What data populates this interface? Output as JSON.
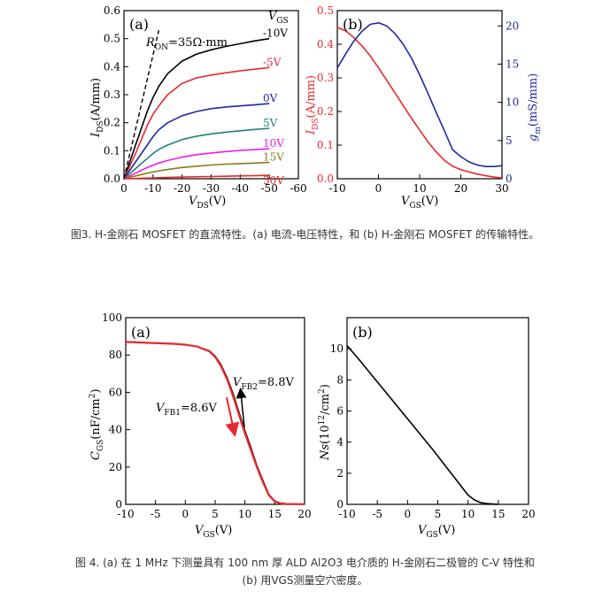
{
  "captions": {
    "fig3": "图3. H-金刚石 MOSFET 的直流特性。(a) 电流-电压特性，和 (b) H-金刚石 MOSFET 的传输特性。",
    "fig4_line1": "图 4. (a) 在 1 MHz 下测量具有 100 nm 厚 ALD Al2O3 电介质的 H-金刚石二极管的 C-V 特性和",
    "fig4_line2": "(b) 用VGS测量空穴密度。"
  },
  "chart_data": [
    {
      "id": "fig3a",
      "panel_label": "(a)",
      "type": "line",
      "xlabel": "VDS(V)",
      "ylabel": "IDS(A/mm)",
      "xlim": [
        0,
        -60
      ],
      "ylim": [
        0,
        0.6
      ],
      "x_ticks": [
        0,
        -10,
        -20,
        -30,
        -40,
        -50,
        -60
      ],
      "y_ticks": [
        0.0,
        0.1,
        0.2,
        0.3,
        0.4,
        0.5,
        0.6
      ],
      "legend_title": "VGS",
      "annotation": {
        "text": "RON=35Ω·mm",
        "line_x": [
          0,
          -12
        ],
        "line_y": [
          0,
          0.53
        ]
      },
      "series": [
        {
          "name": "-10V",
          "color": "#000000",
          "x": [
            0,
            -2,
            -4,
            -6,
            -8,
            -10,
            -12,
            -15,
            -20,
            -25,
            -30,
            -35,
            -40,
            -45,
            -50
          ],
          "values": [
            0,
            0.06,
            0.12,
            0.18,
            0.24,
            0.29,
            0.33,
            0.375,
            0.42,
            0.445,
            0.46,
            0.472,
            0.482,
            0.492,
            0.5
          ]
        },
        {
          "name": "-5V",
          "color": "#e8282d",
          "x": [
            0,
            -2,
            -4,
            -6,
            -8,
            -10,
            -12,
            -15,
            -20,
            -25,
            -30,
            -35,
            -40,
            -45,
            -50
          ],
          "values": [
            0,
            0.045,
            0.09,
            0.14,
            0.19,
            0.23,
            0.26,
            0.3,
            0.34,
            0.36,
            0.37,
            0.378,
            0.385,
            0.391,
            0.397
          ]
        },
        {
          "name": "0V",
          "color": "#1d2aa3",
          "x": [
            0,
            -2,
            -4,
            -6,
            -8,
            -10,
            -12,
            -15,
            -20,
            -25,
            -30,
            -35,
            -40,
            -45,
            -50
          ],
          "values": [
            0,
            0.03,
            0.06,
            0.09,
            0.12,
            0.15,
            0.175,
            0.2,
            0.225,
            0.24,
            0.25,
            0.256,
            0.26,
            0.264,
            0.268
          ]
        },
        {
          "name": "5V",
          "color": "#1f7f7f",
          "x": [
            0,
            -2,
            -4,
            -6,
            -8,
            -10,
            -12,
            -15,
            -20,
            -25,
            -30,
            -35,
            -40,
            -45,
            -50
          ],
          "values": [
            0,
            0.018,
            0.036,
            0.055,
            0.072,
            0.09,
            0.105,
            0.12,
            0.14,
            0.152,
            0.16,
            0.166,
            0.171,
            0.176,
            0.18
          ]
        },
        {
          "name": "10V",
          "color": "#f218e6",
          "x": [
            0,
            -2,
            -4,
            -6,
            -8,
            -10,
            -12,
            -15,
            -20,
            -25,
            -30,
            -35,
            -40,
            -45,
            -50
          ],
          "values": [
            0,
            0.01,
            0.02,
            0.03,
            0.04,
            0.048,
            0.056,
            0.065,
            0.077,
            0.086,
            0.092,
            0.097,
            0.101,
            0.104,
            0.107
          ]
        },
        {
          "name": "15V",
          "color": "#8a7a1a",
          "x": [
            0,
            -2,
            -4,
            -6,
            -8,
            -10,
            -12,
            -15,
            -20,
            -25,
            -30,
            -35,
            -40,
            -45,
            -50
          ],
          "values": [
            0,
            0.005,
            0.01,
            0.015,
            0.02,
            0.024,
            0.028,
            0.033,
            0.04,
            0.045,
            0.049,
            0.052,
            0.054,
            0.056,
            0.058
          ]
        },
        {
          "name": "30V",
          "color": "#e8282d",
          "x": [
            0,
            -10,
            -20,
            -30,
            -40,
            -50
          ],
          "values": [
            0,
            0.003,
            0.006,
            0.008,
            0.01,
            0.012
          ]
        }
      ]
    },
    {
      "id": "fig3b",
      "panel_label": "(b)",
      "type": "line",
      "xlabel": "VGS(V)",
      "ylabel": "IDS(A/mm)",
      "y2label": "gm(mS/mm)",
      "xlim": [
        -10,
        30
      ],
      "ylim": [
        0,
        0.5
      ],
      "y2lim": [
        0,
        22
      ],
      "x_ticks": [
        -10,
        0,
        10,
        20,
        30
      ],
      "y_ticks": [
        0.0,
        0.1,
        0.2,
        0.3,
        0.4,
        0.5
      ],
      "y2_ticks": [
        0,
        5,
        10,
        15,
        20
      ],
      "series": [
        {
          "name": "IDS",
          "axis": "left",
          "color": "#e8282d",
          "x": [
            -10,
            -8,
            -6,
            -4,
            -2,
            0,
            2,
            4,
            6,
            8,
            10,
            12,
            14,
            16,
            18,
            20,
            22,
            24,
            26,
            28,
            30
          ],
          "values": [
            0.45,
            0.44,
            0.42,
            0.395,
            0.365,
            0.33,
            0.293,
            0.255,
            0.218,
            0.18,
            0.145,
            0.11,
            0.08,
            0.055,
            0.037,
            0.027,
            0.02,
            0.014,
            0.009,
            0.005,
            0.002
          ]
        },
        {
          "name": "gm",
          "axis": "right",
          "color": "#1d2aa3",
          "x": [
            -10,
            -8,
            -6,
            -4,
            -2,
            0,
            2,
            4,
            6,
            8,
            10,
            12,
            14,
            16,
            18,
            20,
            22,
            24,
            26,
            28,
            30
          ],
          "values": [
            14.5,
            16.3,
            18.0,
            19.3,
            20.2,
            20.4,
            20.0,
            19.0,
            17.6,
            15.8,
            13.6,
            11.2,
            8.7,
            6.3,
            3.8,
            2.9,
            2.2,
            1.8,
            1.6,
            1.6,
            1.7
          ]
        }
      ]
    },
    {
      "id": "fig4a",
      "panel_label": "(a)",
      "type": "line",
      "xlabel": "VGS(V)",
      "ylabel": "CGS(nF/cm2)",
      "xlim": [
        -10,
        20
      ],
      "ylim": [
        0,
        100
      ],
      "x_ticks": [
        -10,
        -5,
        0,
        5,
        10,
        15,
        20
      ],
      "y_ticks": [
        0,
        20,
        40,
        60,
        80,
        100
      ],
      "annotations": [
        {
          "text": "VFB1=8.6V",
          "color": "#000000"
        },
        {
          "text": "VFB2=8.8V",
          "color": "#000000"
        }
      ],
      "series": [
        {
          "name": "forward",
          "color": "#e8282d",
          "x": [
            -10,
            -6,
            -2,
            0,
            2,
            4,
            5,
            6,
            7,
            8,
            9,
            10,
            11,
            12,
            13,
            14,
            15,
            16,
            17,
            20
          ],
          "values": [
            87,
            86.5,
            86,
            85.5,
            84.5,
            82,
            79,
            74,
            67,
            58,
            48,
            38,
            29,
            20,
            12,
            5,
            1.5,
            0.5,
            0.2,
            0.1
          ]
        },
        {
          "name": "reverse",
          "color": "#000000",
          "x": [
            -10,
            -6,
            -2,
            0,
            2,
            4,
            5,
            6,
            7,
            8,
            9,
            10,
            11,
            12,
            13,
            14,
            15,
            16,
            17,
            20
          ],
          "values": [
            87,
            86.5,
            86,
            85.5,
            84.5,
            82.3,
            79.5,
            74.8,
            68,
            59.5,
            49.5,
            39.5,
            30.5,
            21,
            13,
            5.5,
            1.8,
            0.6,
            0.2,
            0.1
          ]
        }
      ]
    },
    {
      "id": "fig4b",
      "panel_label": "(b)",
      "type": "line",
      "xlabel": "VGS(V)",
      "ylabel": "Ns(1012/cm2)",
      "xlim": [
        -10,
        20
      ],
      "ylim": [
        0,
        12
      ],
      "x_ticks": [
        -10,
        -5,
        0,
        5,
        10,
        15,
        20
      ],
      "y_ticks": [
        0,
        2,
        4,
        6,
        8,
        10
      ],
      "series": [
        {
          "name": "Ns",
          "color": "#000000",
          "x": [
            -10,
            -8,
            -6,
            -4,
            -2,
            0,
            2,
            4,
            6,
            7,
            8,
            9,
            10,
            11,
            12,
            13,
            14,
            15
          ],
          "values": [
            10.2,
            9.3,
            8.35,
            7.4,
            6.45,
            5.5,
            4.55,
            3.6,
            2.6,
            2.1,
            1.6,
            1.1,
            0.6,
            0.3,
            0.12,
            0.05,
            0.02,
            0.0
          ]
        }
      ]
    }
  ]
}
